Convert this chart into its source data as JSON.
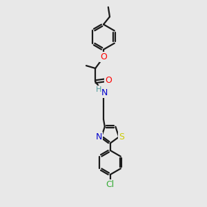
{
  "bg_color": "#e8e8e8",
  "line_color": "#1a1a1a",
  "bond_width": 1.6,
  "figsize": [
    3.0,
    3.0
  ],
  "dpi": 100,
  "colors": {
    "C": "#1a1a1a",
    "N": "#0000cc",
    "O": "#ff0000",
    "S": "#cccc00",
    "Cl": "#33aa33",
    "H": "#4e9b9b"
  }
}
